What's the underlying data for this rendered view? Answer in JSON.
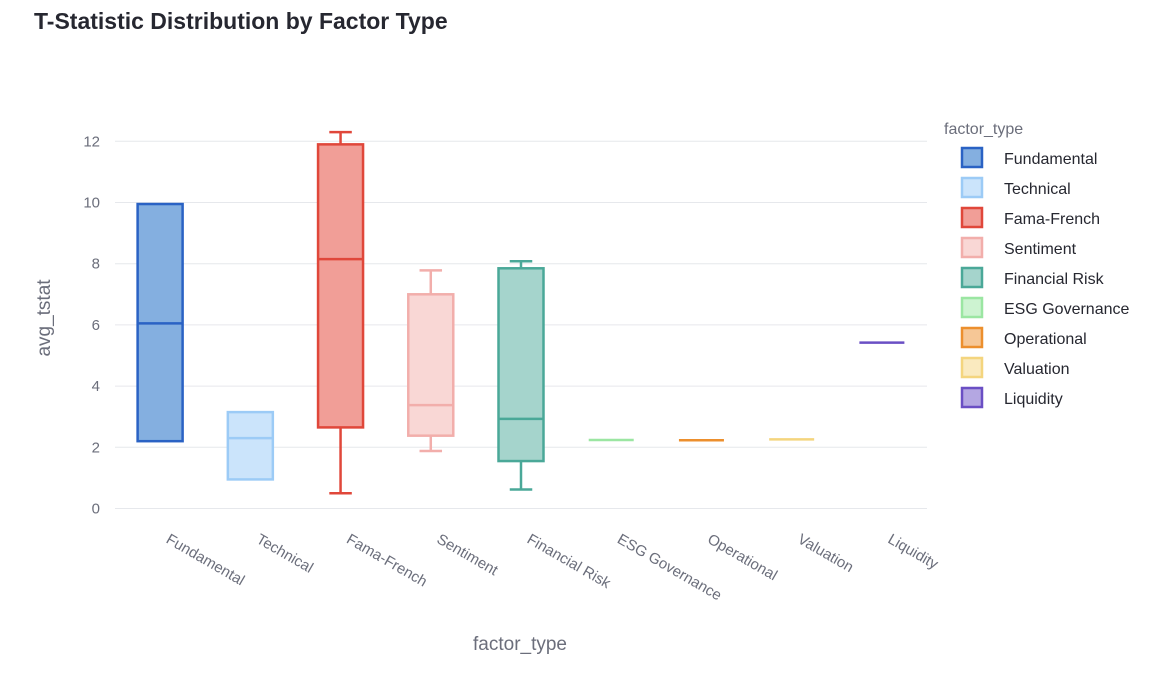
{
  "chart_data": {
    "type": "box",
    "title": "T-Statistic Distribution by Factor Type",
    "xlabel": "factor_type",
    "ylabel": "avg_tstat",
    "ylim": [
      -0.3,
      12.9
    ],
    "yticks": [
      0,
      2,
      4,
      6,
      8,
      10,
      12
    ],
    "grid": true,
    "legend_title": "factor_type",
    "legend_position": "right",
    "categories": [
      "Fundamental",
      "Technical",
      "Fama-French",
      "Sentiment",
      "Financial Risk",
      "ESG Governance",
      "Operational",
      "Valuation",
      "Liquidity"
    ],
    "series": [
      {
        "name": "Fundamental",
        "color": "#2a62c4",
        "fill": "#84afe0",
        "min": 2.2,
        "q1": 2.2,
        "median": 6.05,
        "q3": 9.95,
        "max": 9.95
      },
      {
        "name": "Technical",
        "color": "#9ccbf6",
        "fill": "#cbe4fb",
        "min": 0.95,
        "q1": 0.95,
        "median": 2.3,
        "q3": 3.15,
        "max": 3.15
      },
      {
        "name": "Fama-French",
        "color": "#e0473a",
        "fill": "#f19e97",
        "min": 0.5,
        "q1": 2.65,
        "median": 8.15,
        "q3": 11.9,
        "max": 12.3
      },
      {
        "name": "Sentiment",
        "color": "#f2aeab",
        "fill": "#f9d7d5",
        "min": 1.88,
        "q1": 2.38,
        "median": 3.38,
        "q3": 7.0,
        "max": 7.78
      },
      {
        "name": "Financial Risk",
        "color": "#4aa898",
        "fill": "#a5d4cc",
        "min": 0.62,
        "q1": 1.55,
        "median": 2.93,
        "q3": 7.85,
        "max": 8.08
      },
      {
        "name": "ESG Governance",
        "color": "#9be6a2",
        "fill": "#cdf3d1",
        "min": 2.24,
        "q1": 2.24,
        "median": 2.24,
        "q3": 2.24,
        "max": 2.24
      },
      {
        "name": "Operational",
        "color": "#ec8f2d",
        "fill": "#f6c796",
        "min": 2.23,
        "q1": 2.23,
        "median": 2.23,
        "q3": 2.23,
        "max": 2.23
      },
      {
        "name": "Valuation",
        "color": "#f4d57e",
        "fill": "#faeabf",
        "min": 2.26,
        "q1": 2.26,
        "median": 2.26,
        "q3": 2.26,
        "max": 2.26
      },
      {
        "name": "Liquidity",
        "color": "#6a4fc4",
        "fill": "#b4a7e2",
        "min": 5.42,
        "q1": 5.42,
        "median": 5.42,
        "q3": 5.42,
        "max": 5.42
      }
    ]
  }
}
